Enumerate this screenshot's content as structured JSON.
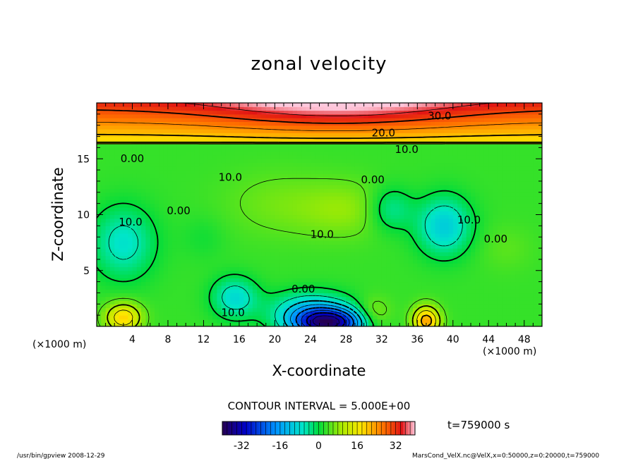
{
  "chart_data": {
    "type": "heatmap",
    "title": "zonal velocity",
    "xlabel": "X-coordinate",
    "ylabel": "Z-coordinate",
    "x_unit_left": "(×1000 m)",
    "x_unit_right": "(×1000 m)",
    "xlim": [
      0,
      50
    ],
    "ylim": [
      0,
      20
    ],
    "x_ticks": [
      4,
      8,
      12,
      16,
      20,
      24,
      28,
      32,
      36,
      40,
      44,
      48
    ],
    "y_ticks": [
      5,
      10,
      15
    ],
    "contour_interval": "CONTOUR INTERVAL = 5.000E+00",
    "time": "t=759000 s",
    "colorbar": {
      "range": [
        -40,
        40
      ],
      "ticks": [
        -32,
        -16,
        0,
        16,
        32
      ]
    },
    "contour_labels": [
      {
        "text": "30.0",
        "x": 38.5,
        "y": 18.8
      },
      {
        "text": "20.0",
        "x": 32.2,
        "y": 17.3
      },
      {
        "text": "10.0",
        "x": 34.8,
        "y": 15.8
      },
      {
        "text": "0.00",
        "x": 4.0,
        "y": 15.0
      },
      {
        "text": "10.0",
        "x": 15.0,
        "y": 13.3
      },
      {
        "text": "0.00",
        "x": 31.0,
        "y": 13.1
      },
      {
        "text": "0.00",
        "x": 9.2,
        "y": 10.3
      },
      {
        "text": "10.0",
        "x": 3.8,
        "y": 9.3
      },
      {
        "text": "10.0",
        "x": 25.3,
        "y": 8.2
      },
      {
        "text": "10.0",
        "x": 41.8,
        "y": 9.5
      },
      {
        "text": "0.00",
        "x": 44.8,
        "y": 7.8
      },
      {
        "text": "0.00",
        "x": 23.2,
        "y": 3.3
      },
      {
        "text": "10.0",
        "x": 15.3,
        "y": 1.2
      }
    ]
  },
  "footer": {
    "left": "/usr/bin/gpview   2008-12-29",
    "right": "MarsCond_VelX.nc@VelX,x=0:50000,z=0:20000,t=759000"
  }
}
